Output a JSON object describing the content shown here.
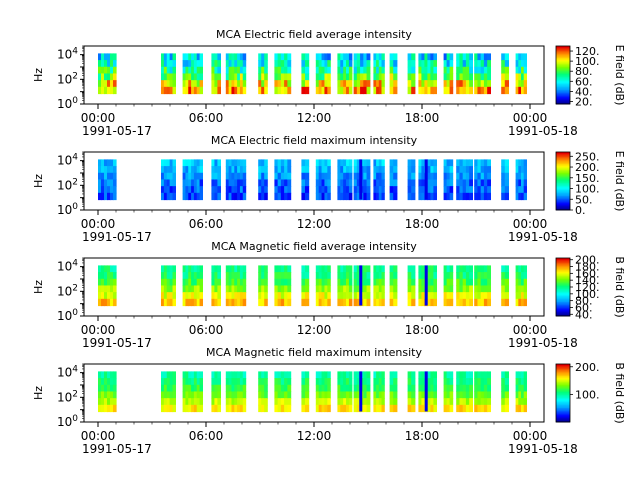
{
  "chart_data": [
    {
      "type": "heatmap",
      "title": "MCA  Electric field average intensity",
      "ylabel": "Hz",
      "y_scale": "log",
      "yticks": [
        {
          "base": "10",
          "exp": "0"
        },
        {
          "base": "10",
          "exp": "2"
        },
        {
          "base": "10",
          "exp": "4"
        }
      ],
      "xticks": [
        "00:00",
        "06:00",
        "12:00",
        "18:00",
        "00:00"
      ],
      "date_start": "1991-05-17",
      "date_end": "1991-05-18",
      "colorbar": {
        "label": "E field (dB)",
        "ticks": [
          "20.",
          "40.",
          "60.",
          "80.",
          "100.",
          "120."
        ],
        "range": [
          15,
          130
        ]
      },
      "data_intervals_utc_hours": [
        [
          0.0,
          1.0
        ],
        [
          3.5,
          4.3
        ],
        [
          4.7,
          5.8
        ],
        [
          6.3,
          6.8
        ],
        [
          7.1,
          8.2
        ],
        [
          8.9,
          9.4
        ],
        [
          9.8,
          10.7
        ],
        [
          11.3,
          11.7
        ],
        [
          12.1,
          12.9
        ],
        [
          13.3,
          14.1
        ],
        [
          14.2,
          15.1
        ],
        [
          15.3,
          15.9
        ],
        [
          16.2,
          16.6
        ],
        [
          17.2,
          17.6
        ],
        [
          17.8,
          18.8
        ],
        [
          19.2,
          19.7
        ],
        [
          19.9,
          20.8
        ],
        [
          20.9,
          21.8
        ],
        [
          22.4,
          22.8
        ],
        [
          23.2,
          23.8
        ]
      ],
      "color_scheme": "rainbow"
    },
    {
      "type": "heatmap",
      "title": "MCA  Electric field maximum intensity",
      "ylabel": "Hz",
      "y_scale": "log",
      "yticks": [
        {
          "base": "10",
          "exp": "0"
        },
        {
          "base": "10",
          "exp": "2"
        },
        {
          "base": "10",
          "exp": "4"
        }
      ],
      "xticks": [
        "00:00",
        "06:00",
        "12:00",
        "18:00",
        "00:00"
      ],
      "date_start": "1991-05-17",
      "date_end": "1991-05-18",
      "colorbar": {
        "label": "E field (dB)",
        "ticks": [
          "0.",
          "50.",
          "100.",
          "150.",
          "200.",
          "250."
        ],
        "range": [
          0,
          270
        ]
      },
      "data_intervals_utc_hours": [
        [
          0.0,
          1.0
        ],
        [
          3.5,
          4.3
        ],
        [
          4.7,
          5.8
        ],
        [
          6.3,
          6.8
        ],
        [
          7.1,
          8.2
        ],
        [
          8.9,
          9.4
        ],
        [
          9.8,
          10.7
        ],
        [
          11.3,
          11.7
        ],
        [
          12.1,
          12.9
        ],
        [
          13.3,
          14.1
        ],
        [
          14.2,
          15.1
        ],
        [
          15.3,
          15.9
        ],
        [
          16.2,
          16.6
        ],
        [
          17.2,
          17.6
        ],
        [
          17.8,
          18.8
        ],
        [
          19.2,
          19.7
        ],
        [
          19.9,
          20.8
        ],
        [
          20.9,
          21.8
        ],
        [
          22.4,
          22.8
        ],
        [
          23.2,
          23.8
        ]
      ],
      "color_scheme": "rainbow"
    },
    {
      "type": "heatmap",
      "title": "MCA  Magnetic field average intensity",
      "ylabel": "Hz",
      "y_scale": "log",
      "yticks": [
        {
          "base": "10",
          "exp": "0"
        },
        {
          "base": "10",
          "exp": "2"
        },
        {
          "base": "10",
          "exp": "4"
        }
      ],
      "xticks": [
        "00:00",
        "06:00",
        "12:00",
        "18:00",
        "00:00"
      ],
      "date_start": "1991-05-17",
      "date_end": "1991-05-18",
      "colorbar": {
        "label": "B field (dB)",
        "ticks": [
          "40.",
          "60.",
          "80.",
          "100.",
          "120.",
          "140.",
          "160.",
          "180.",
          "200."
        ],
        "range": [
          35,
          205
        ]
      },
      "data_intervals_utc_hours": [
        [
          0.0,
          1.0
        ],
        [
          3.5,
          4.3
        ],
        [
          4.7,
          5.8
        ],
        [
          6.3,
          6.8
        ],
        [
          7.1,
          8.2
        ],
        [
          8.9,
          9.4
        ],
        [
          9.8,
          10.7
        ],
        [
          11.3,
          11.7
        ],
        [
          12.1,
          12.9
        ],
        [
          13.3,
          14.1
        ],
        [
          14.2,
          15.1
        ],
        [
          15.3,
          15.9
        ],
        [
          16.2,
          16.6
        ],
        [
          17.2,
          17.6
        ],
        [
          17.8,
          18.8
        ],
        [
          19.2,
          19.7
        ],
        [
          19.9,
          20.8
        ],
        [
          20.9,
          21.8
        ],
        [
          22.4,
          22.8
        ],
        [
          23.2,
          23.8
        ]
      ],
      "color_scheme": "rainbow"
    },
    {
      "type": "heatmap",
      "title": "MCA  Magnetic field maximum intensity",
      "ylabel": "Hz",
      "y_scale": "log",
      "yticks": [
        {
          "base": "10",
          "exp": "0"
        },
        {
          "base": "10",
          "exp": "2"
        },
        {
          "base": "10",
          "exp": "4"
        }
      ],
      "xticks": [
        "00:00",
        "06:00",
        "12:00",
        "18:00",
        "00:00"
      ],
      "date_start": "1991-05-17",
      "date_end": "1991-05-18",
      "colorbar": {
        "label": "B field (dB)",
        "ticks": [
          "100.",
          "200."
        ],
        "range": [
          0,
          210
        ]
      },
      "data_intervals_utc_hours": [
        [
          0.0,
          1.0
        ],
        [
          3.5,
          4.3
        ],
        [
          4.7,
          5.8
        ],
        [
          6.3,
          6.8
        ],
        [
          7.1,
          8.2
        ],
        [
          8.9,
          9.4
        ],
        [
          9.8,
          10.7
        ],
        [
          11.3,
          11.7
        ],
        [
          12.1,
          12.9
        ],
        [
          13.3,
          14.1
        ],
        [
          14.2,
          15.1
        ],
        [
          15.3,
          15.9
        ],
        [
          16.2,
          16.6
        ],
        [
          17.2,
          17.6
        ],
        [
          17.8,
          18.8
        ],
        [
          19.2,
          19.7
        ],
        [
          19.9,
          20.8
        ],
        [
          20.9,
          21.8
        ],
        [
          22.4,
          22.8
        ],
        [
          23.2,
          23.8
        ]
      ],
      "color_scheme": "rainbow"
    }
  ]
}
